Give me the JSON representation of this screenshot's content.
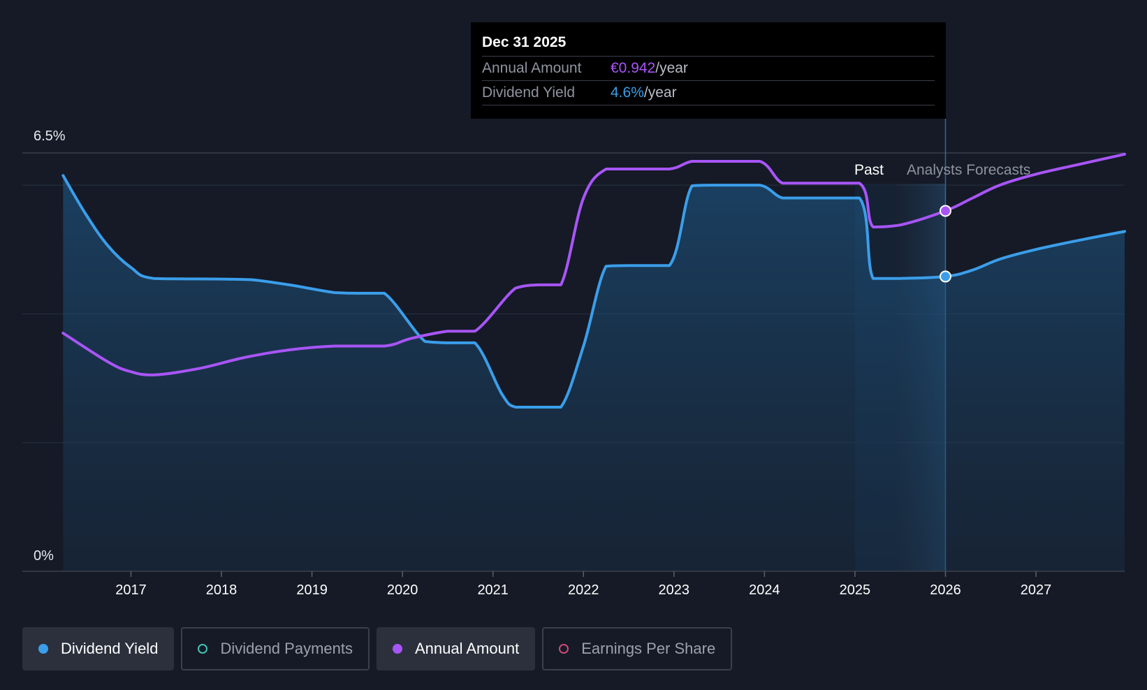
{
  "chart_data": {
    "type": "line",
    "y_axis": {
      "top_label": "6.5%",
      "bottom_label": "0%",
      "range": [
        0,
        6.5
      ]
    },
    "x_axis": {
      "tick_labels": [
        "2017",
        "2018",
        "2019",
        "2020",
        "2021",
        "2022",
        "2023",
        "2024",
        "2025",
        "2026",
        "2027"
      ],
      "tick_values": [
        2017,
        2018,
        2019,
        2020,
        2021,
        2022,
        2023,
        2024,
        2025,
        2026,
        2027
      ],
      "range": [
        2015.8,
        2027.98
      ]
    },
    "regions": {
      "past_label": "Past",
      "forecast_label": "Analysts Forecasts",
      "divider": 2025.45
    },
    "series": [
      {
        "name": "Dividend Yield",
        "color": "#3b9eea",
        "filled": true,
        "points": [
          [
            2016.25,
            6.15
          ],
          [
            2016.5,
            5.55
          ],
          [
            2016.75,
            5.05
          ],
          [
            2017.0,
            4.72
          ],
          [
            2017.25,
            4.55
          ],
          [
            2018.0,
            4.54
          ],
          [
            2018.33,
            4.53
          ],
          [
            2018.75,
            4.45
          ],
          [
            2019.25,
            4.33
          ],
          [
            2019.5,
            4.32
          ],
          [
            2019.8,
            4.32
          ],
          [
            2020.25,
            3.57
          ],
          [
            2020.5,
            3.55
          ],
          [
            2020.8,
            3.55
          ],
          [
            2021.1,
            2.75
          ],
          [
            2021.25,
            2.55
          ],
          [
            2021.5,
            2.55
          ],
          [
            2021.75,
            2.55
          ],
          [
            2022.0,
            3.5
          ],
          [
            2022.25,
            4.74
          ],
          [
            2022.5,
            4.75
          ],
          [
            2022.95,
            4.75
          ],
          [
            2023.2,
            5.99
          ],
          [
            2023.5,
            6.0
          ],
          [
            2023.95,
            6.0
          ],
          [
            2024.2,
            5.8
          ],
          [
            2024.5,
            5.8
          ],
          [
            2025.05,
            5.8
          ],
          [
            2025.2,
            4.55
          ],
          [
            2025.5,
            4.55
          ],
          [
            2026.0,
            4.58
          ],
          [
            2026.3,
            4.68
          ],
          [
            2026.6,
            4.85
          ],
          [
            2027.0,
            5.0
          ],
          [
            2027.5,
            5.15
          ],
          [
            2027.98,
            5.28
          ]
        ]
      },
      {
        "name": "Annual Amount",
        "color": "#a855f7",
        "filled": false,
        "points": [
          [
            2016.25,
            3.7
          ],
          [
            2016.75,
            3.25
          ],
          [
            2017.0,
            3.1
          ],
          [
            2017.25,
            3.05
          ],
          [
            2017.75,
            3.15
          ],
          [
            2018.25,
            3.32
          ],
          [
            2018.75,
            3.44
          ],
          [
            2019.25,
            3.5
          ],
          [
            2019.8,
            3.5
          ],
          [
            2020.1,
            3.62
          ],
          [
            2020.5,
            3.73
          ],
          [
            2020.8,
            3.73
          ],
          [
            2021.25,
            4.4
          ],
          [
            2021.5,
            4.45
          ],
          [
            2021.75,
            4.45
          ],
          [
            2022.0,
            5.8
          ],
          [
            2022.25,
            6.25
          ],
          [
            2022.5,
            6.25
          ],
          [
            2022.95,
            6.25
          ],
          [
            2023.2,
            6.37
          ],
          [
            2023.5,
            6.37
          ],
          [
            2023.95,
            6.37
          ],
          [
            2024.2,
            6.03
          ],
          [
            2024.5,
            6.03
          ],
          [
            2025.05,
            6.03
          ],
          [
            2025.2,
            5.35
          ],
          [
            2025.5,
            5.38
          ],
          [
            2026.0,
            5.6
          ],
          [
            2026.3,
            5.8
          ],
          [
            2026.6,
            6.0
          ],
          [
            2027.0,
            6.17
          ],
          [
            2027.5,
            6.33
          ],
          [
            2027.98,
            6.48
          ]
        ]
      }
    ],
    "highlight": {
      "x": 2026.0,
      "amount_y": 5.6,
      "yield_y": 4.58
    },
    "tooltip": {
      "date": "Dec 31 2025",
      "rows": [
        {
          "label": "Annual Amount",
          "value": "€0.942",
          "unit": "/year"
        },
        {
          "label": "Dividend Yield",
          "value": "4.6%",
          "unit": "/year"
        }
      ]
    }
  },
  "legend": {
    "items": [
      {
        "label": "Dividend Yield",
        "color": "#3b9eea",
        "active": true,
        "filled": true
      },
      {
        "label": "Dividend Payments",
        "color": "#3fc4b4",
        "active": false,
        "filled": false
      },
      {
        "label": "Annual Amount",
        "color": "#a855f7",
        "active": true,
        "filled": true
      },
      {
        "label": "Earnings Per Share",
        "color": "#d04a7a",
        "active": false,
        "filled": false
      }
    ]
  }
}
